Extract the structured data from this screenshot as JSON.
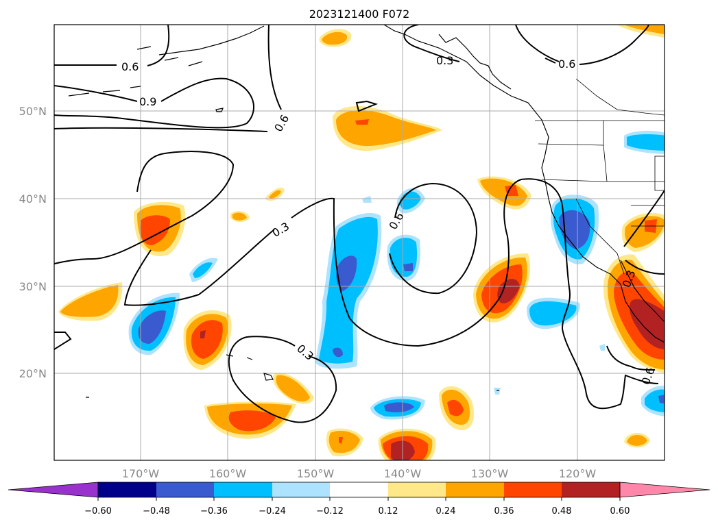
{
  "title": "2023121400 F072",
  "map": {
    "lat_labels": [
      "50°N",
      "40°N",
      "30°N",
      "20°N"
    ],
    "lon_labels": [
      "170°W",
      "160°W",
      "150°W",
      "140°W",
      "130°W",
      "120°W"
    ],
    "contour_labels": [
      "0.6",
      "0.9",
      "0.6",
      "0.3",
      "0.6",
      "0.3",
      "0.3",
      "0.6",
      "0.3",
      "0.6"
    ],
    "gridlines": true
  },
  "colorbar": {
    "levels": [
      "−0.60",
      "−0.48",
      "−0.36",
      "−0.24",
      "−0.12",
      "0.12",
      "0.24",
      "0.36",
      "0.48",
      "0.60"
    ],
    "colors": [
      "#9932cc",
      "#00008b",
      "#3a5bd0",
      "#00bfff",
      "#ade3ff",
      "#ffffff",
      "#ffe88a",
      "#ffa500",
      "#ff4500",
      "#b22222",
      "#ff88aa"
    ]
  }
}
